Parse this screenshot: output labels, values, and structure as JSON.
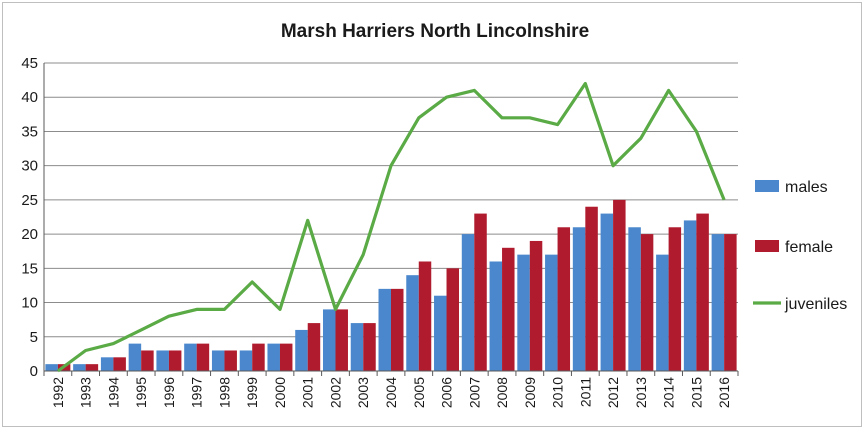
{
  "chart_data": {
    "type": "bar",
    "title": "Marsh Harriers North Lincolnshire",
    "xlabel": "",
    "ylabel": "",
    "ylim": [
      0,
      45
    ],
    "yticks": [
      0,
      5,
      10,
      15,
      20,
      25,
      30,
      35,
      40,
      45
    ],
    "grid": true,
    "legend_position": "right",
    "categories": [
      "1992",
      "1993",
      "1994",
      "1995",
      "1996",
      "1997",
      "1998",
      "1999",
      "2000",
      "2001",
      "2002",
      "2003",
      "2004",
      "2005",
      "2006",
      "2007",
      "2008",
      "2009",
      "2010",
      "2011",
      "2012",
      "2013",
      "2014",
      "2015",
      "2016"
    ],
    "series": [
      {
        "name": "males",
        "kind": "bar",
        "color": "#4a87cc",
        "values": [
          1,
          1,
          2,
          4,
          3,
          4,
          3,
          3,
          4,
          6,
          9,
          7,
          12,
          14,
          11,
          20,
          16,
          17,
          17,
          21,
          23,
          21,
          17,
          22,
          20
        ]
      },
      {
        "name": "female",
        "kind": "bar",
        "color": "#b01c2e",
        "values": [
          1,
          1,
          2,
          3,
          3,
          4,
          3,
          4,
          4,
          7,
          9,
          7,
          12,
          16,
          15,
          23,
          18,
          19,
          21,
          24,
          25,
          20,
          21,
          23,
          20
        ]
      },
      {
        "name": "juveniles",
        "kind": "line",
        "color": "#5aaa46",
        "values": [
          0,
          3,
          4,
          6,
          8,
          9,
          9,
          13,
          9,
          22,
          9,
          17,
          30,
          37,
          40,
          41,
          37,
          37,
          36,
          42,
          30,
          34,
          41,
          35,
          25
        ]
      }
    ]
  }
}
